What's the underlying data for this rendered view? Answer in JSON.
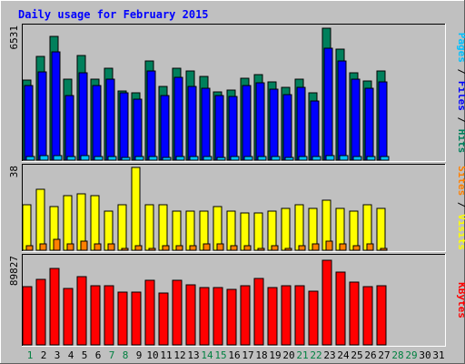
{
  "title": "Daily usage for February 2015",
  "colors": {
    "background": "#c0c0c0",
    "panel": "#c0c0c0",
    "title": "#0000ff",
    "hits": "#00805c",
    "files": "#0000ff",
    "pages": "#00c0ff",
    "visits": "#ffff00",
    "sites": "#ff8000",
    "kbytes": "#ff0000",
    "weekday_label": "#000000",
    "weekend_label": "#008040"
  },
  "chart_data": [
    {
      "type": "bar",
      "name": "hits-files-pages",
      "max_label": "6531",
      "ylim": [
        0,
        6531
      ],
      "side_label": [
        {
          "text": "Pages",
          "color": "#00c0ff"
        },
        {
          "text": " / ",
          "color": "#000000"
        },
        {
          "text": "Files",
          "color": "#0000ff"
        },
        {
          "text": " / ",
          "color": "#000000"
        },
        {
          "text": "Hits",
          "color": "#00805c"
        }
      ],
      "series": [
        {
          "name": "Hits",
          "color": "#00805c",
          "values": [
            3930,
            5090,
            6100,
            3960,
            5140,
            3990,
            4520,
            3410,
            3300,
            4880,
            3630,
            4540,
            4400,
            4100,
            3370,
            3460,
            4040,
            4220,
            3840,
            3580,
            4000,
            3290,
            6490,
            5460,
            4310,
            3900,
            4400
          ]
        },
        {
          "name": "Files",
          "color": "#0000ff",
          "values": [
            3650,
            4360,
            5340,
            3160,
            4290,
            3680,
            3960,
            3300,
            3000,
            4380,
            3180,
            4060,
            3640,
            3550,
            3160,
            3140,
            3670,
            3800,
            3510,
            3230,
            3580,
            2900,
            5480,
            4860,
            3970,
            3530,
            3850
          ]
        },
        {
          "name": "Pages",
          "color": "#00c0ff",
          "values": [
            190,
            230,
            230,
            190,
            220,
            180,
            200,
            150,
            170,
            200,
            150,
            180,
            170,
            160,
            150,
            160,
            180,
            190,
            170,
            150,
            170,
            160,
            240,
            220,
            180,
            170,
            170
          ]
        }
      ]
    },
    {
      "type": "bar",
      "name": "visits-sites",
      "max_label": "38",
      "ylim": [
        0,
        38
      ],
      "side_label": [
        {
          "text": "Sites",
          "color": "#ff8000"
        },
        {
          "text": " / ",
          "color": "#000000"
        },
        {
          "text": "Visits",
          "color": "#ffff00"
        }
      ],
      "series": [
        {
          "name": "Visits",
          "color": "#ffff00",
          "values": [
            21,
            28,
            20,
            25,
            26,
            25,
            18,
            21,
            38,
            21,
            21,
            18,
            18,
            18,
            20,
            18,
            17,
            17,
            18,
            19,
            21,
            19,
            23,
            19,
            18,
            21,
            19
          ]
        },
        {
          "name": "Sites",
          "color": "#ff8000",
          "values": [
            2,
            3,
            5,
            3,
            4,
            3,
            3,
            1,
            2,
            1,
            2,
            2,
            2,
            3,
            3,
            2,
            2,
            1,
            2,
            1,
            2,
            3,
            4,
            3,
            2,
            3,
            1
          ]
        }
      ]
    },
    {
      "type": "bar",
      "name": "kbytes",
      "max_label": "89827",
      "ylim": [
        0,
        89827
      ],
      "side_label": [
        {
          "text": "KBytes",
          "color": "#ff0000"
        }
      ],
      "series": [
        {
          "name": "KBytes",
          "color": "#ff0000",
          "values": [
            60000,
            67000,
            79000,
            58000,
            70000,
            60500,
            61000,
            54500,
            54000,
            66500,
            53500,
            66500,
            61500,
            58500,
            58500,
            57000,
            61000,
            68000,
            59000,
            61000,
            61000,
            55000,
            87000,
            75000,
            64500,
            59500,
            61000
          ]
        }
      ]
    }
  ],
  "x_axis": {
    "days": [
      "1",
      "2",
      "3",
      "4",
      "5",
      "6",
      "7",
      "8",
      "9",
      "10",
      "11",
      "12",
      "13",
      "14",
      "15",
      "16",
      "17",
      "18",
      "19",
      "20",
      "21",
      "22",
      "23",
      "24",
      "25",
      "26",
      "27",
      "28",
      "29",
      "30",
      "31"
    ],
    "weekend_days": [
      "1",
      "7",
      "8",
      "14",
      "15",
      "21",
      "22",
      "28",
      "29"
    ]
  }
}
